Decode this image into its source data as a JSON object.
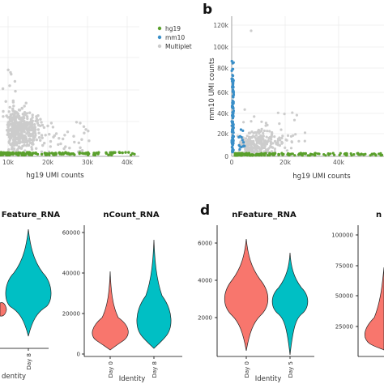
{
  "panels": {
    "b": "b",
    "d": "d"
  },
  "chart_data": [
    {
      "id": "scatter-a",
      "type": "scatter",
      "xlabel": "hg19 UMI counts",
      "x_ticks": [
        "10k",
        "20k",
        "30k",
        "40k"
      ],
      "legend": [
        "hg19",
        "mm10",
        "Multiplet"
      ],
      "legend_position": "top-right",
      "colors": {
        "hg19": "#5aa02c",
        "mm10": "#3a8fc8",
        "Multiplet": "#cccccc"
      },
      "grid": true
    },
    {
      "id": "scatter-b",
      "type": "scatter",
      "xlabel": "hg19 UMI counts",
      "ylabel": "mm10 UMI counts",
      "x_ticks": [
        "0",
        "20k",
        "40k"
      ],
      "y_ticks": [
        "0",
        "20k",
        "40k",
        "60k",
        "80k",
        "100k",
        "120k"
      ],
      "xlim": [
        0,
        45000
      ],
      "ylim": [
        0,
        125000
      ],
      "colors": {
        "hg19": "#5aa02c",
        "mm10": "#3a8fc8",
        "Multiplet": "#cccccc"
      },
      "grid": true
    },
    {
      "id": "violin-c-nfeature",
      "type": "violin",
      "title": "Feature_RNA",
      "xlabel": "dentity",
      "categories": [
        "Day 8"
      ],
      "colors": [
        "#f8766d",
        "#00bfc4"
      ]
    },
    {
      "id": "violin-c-ncount",
      "type": "violin",
      "title": "nCount_RNA",
      "xlabel": "Identity",
      "categories": [
        "Day 0",
        "Day 8"
      ],
      "y_ticks": [
        "0",
        "20000",
        "40000",
        "60000"
      ],
      "ylim": [
        0,
        62000
      ],
      "colors": [
        "#f8766d",
        "#00bfc4"
      ]
    },
    {
      "id": "violin-d-nfeature",
      "type": "violin",
      "title": "nFeature_RNA",
      "xlabel": "Identity",
      "categories": [
        "Day 0",
        "Day 5"
      ],
      "y_ticks": [
        "2000",
        "4000",
        "6000"
      ],
      "ylim": [
        900,
        6800
      ],
      "colors": [
        "#f8766d",
        "#00bfc4"
      ]
    },
    {
      "id": "violin-d-ncount",
      "type": "violin",
      "title": "n",
      "y_ticks": [
        "25000",
        "50000",
        "75000",
        "100000"
      ],
      "ylim": [
        10000,
        112000
      ],
      "colors": [
        "#f8766d",
        "#00bfc4"
      ]
    }
  ]
}
